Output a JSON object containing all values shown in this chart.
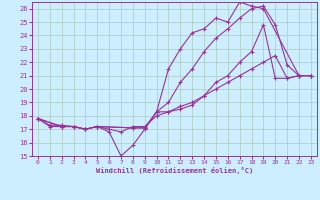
{
  "xlabel": "Windchill (Refroidissement éolien,°C)",
  "bg_color": "#cceeff",
  "line_color": "#993399",
  "grid_color": "#aaccbb",
  "xlim": [
    -0.5,
    23.5
  ],
  "ylim": [
    15,
    26.5
  ],
  "xticks": [
    0,
    1,
    2,
    3,
    4,
    5,
    6,
    7,
    8,
    9,
    10,
    11,
    12,
    13,
    14,
    15,
    16,
    17,
    18,
    19,
    20,
    21,
    22,
    23
  ],
  "yticks": [
    15,
    16,
    17,
    18,
    19,
    20,
    21,
    22,
    23,
    24,
    25,
    26
  ],
  "series": [
    {
      "x": [
        0,
        1,
        2,
        3,
        4,
        5,
        6,
        7,
        8,
        9,
        10,
        11,
        12,
        13,
        14,
        15,
        16,
        17,
        18,
        19,
        20,
        21,
        22,
        23
      ],
      "y": [
        17.8,
        17.2,
        17.2,
        17.2,
        17.0,
        17.2,
        16.8,
        15.0,
        15.8,
        17.0,
        18.3,
        18.3,
        18.5,
        18.8,
        19.5,
        20.5,
        21.0,
        22.0,
        22.8,
        24.8,
        20.8,
        20.8,
        21.0,
        21.0
      ]
    },
    {
      "x": [
        0,
        2,
        3,
        4,
        5,
        8,
        9,
        10,
        11,
        12,
        13,
        14,
        15,
        16,
        17,
        18,
        19,
        22,
        23
      ],
      "y": [
        17.8,
        17.2,
        17.2,
        17.0,
        17.2,
        17.1,
        17.1,
        18.3,
        21.5,
        23.0,
        24.2,
        24.5,
        25.3,
        25.0,
        26.5,
        26.2,
        26.0,
        21.0,
        21.0
      ]
    },
    {
      "x": [
        0,
        2,
        3,
        4,
        5,
        8,
        9,
        10,
        11,
        12,
        13,
        14,
        15,
        16,
        17,
        18,
        19,
        20,
        21,
        22,
        23
      ],
      "y": [
        17.8,
        17.2,
        17.2,
        17.0,
        17.2,
        17.1,
        17.1,
        18.3,
        19.0,
        20.5,
        21.5,
        22.8,
        23.8,
        24.5,
        25.3,
        26.0,
        26.2,
        24.8,
        21.8,
        21.0,
        21.0
      ]
    },
    {
      "x": [
        0,
        1,
        2,
        3,
        4,
        5,
        6,
        7,
        8,
        9,
        10,
        11,
        12,
        13,
        14,
        15,
        16,
        17,
        18,
        19,
        20,
        21,
        22,
        23
      ],
      "y": [
        17.8,
        17.3,
        17.3,
        17.2,
        17.0,
        17.2,
        17.0,
        16.8,
        17.2,
        17.2,
        18.0,
        18.3,
        18.7,
        19.0,
        19.5,
        20.0,
        20.5,
        21.0,
        21.5,
        22.0,
        22.5,
        20.8,
        21.0,
        21.0
      ]
    }
  ]
}
